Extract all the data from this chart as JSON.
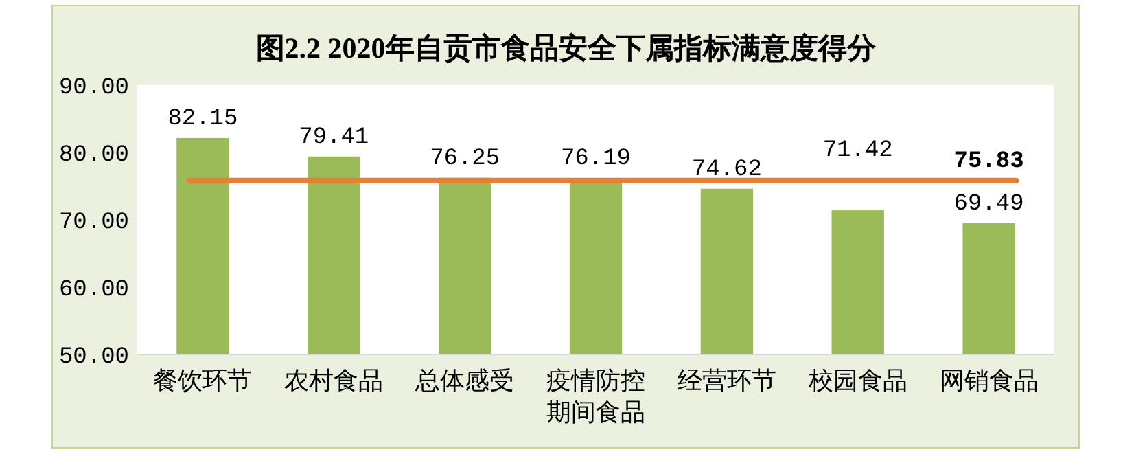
{
  "chart_data": {
    "type": "bar",
    "title": "图2.2 2020年自贡市食品安全下属指标满意度得分",
    "categories": [
      "餐饮环节",
      "农村食品",
      "总体感受",
      "疫情防控期间食品",
      "经营环节",
      "校园食品",
      "网销食品"
    ],
    "values": [
      82.15,
      79.41,
      76.25,
      76.19,
      74.62,
      71.42,
      69.49
    ],
    "color": "#9bbb59",
    "ylim": [
      50,
      90
    ],
    "yticks": [
      {
        "value": 50,
        "label": "50.00"
      },
      {
        "value": 60,
        "label": "60.00"
      },
      {
        "value": 70,
        "label": "70.00"
      },
      {
        "value": 80,
        "label": "80.00"
      },
      {
        "value": 90,
        "label": "90.00"
      }
    ],
    "data_labels": true,
    "grid": false,
    "ref_lines": [
      {
        "axis": "y",
        "value": 75.83,
        "label": "75.83",
        "color": "#ed7d31"
      }
    ]
  }
}
